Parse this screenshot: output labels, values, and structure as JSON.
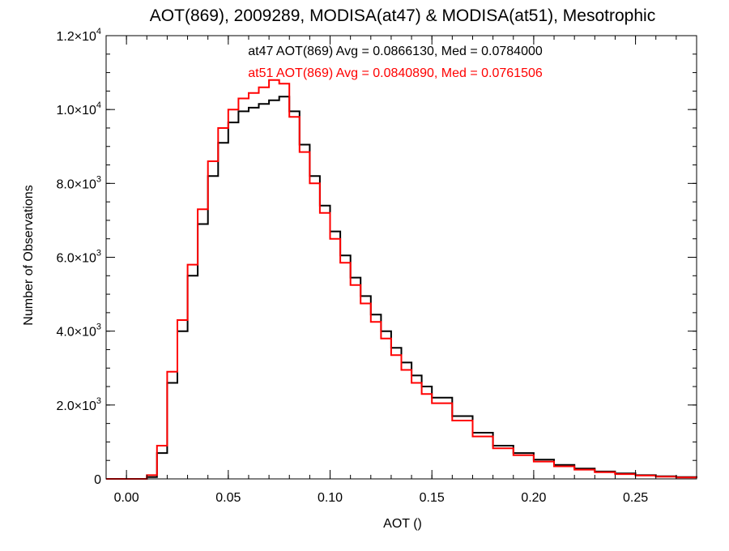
{
  "chart_data": {
    "type": "line",
    "style": "step-histogram",
    "title": "AOT(869), 2009289, MODISA(at47) & MODISA(at51), Mesotrophic",
    "xlabel": "AOT ()",
    "ylabel": "Number of Observations",
    "xlim": [
      -0.01,
      0.28
    ],
    "ylim": [
      0,
      12000
    ],
    "x_ticks": [
      {
        "value": 0.0,
        "label": "0.00"
      },
      {
        "value": 0.05,
        "label": "0.05"
      },
      {
        "value": 0.1,
        "label": "0.10"
      },
      {
        "value": 0.15,
        "label": "0.15"
      },
      {
        "value": 0.2,
        "label": "0.20"
      },
      {
        "value": 0.25,
        "label": "0.25"
      }
    ],
    "y_ticks": [
      {
        "value": 0,
        "mant": "0",
        "exp": ""
      },
      {
        "value": 2000,
        "mant": "2.0×10",
        "exp": "3"
      },
      {
        "value": 4000,
        "mant": "4.0×10",
        "exp": "3"
      },
      {
        "value": 6000,
        "mant": "6.0×10",
        "exp": "3"
      },
      {
        "value": 8000,
        "mant": "8.0×10",
        "exp": "3"
      },
      {
        "value": 10000,
        "mant": "1.0×10",
        "exp": "4"
      },
      {
        "value": 12000,
        "mant": "1.2×10",
        "exp": "4"
      }
    ],
    "grid": false,
    "legend_position": "top-center",
    "x": [
      0.0,
      0.005,
      0.01,
      0.015,
      0.02,
      0.025,
      0.03,
      0.035,
      0.04,
      0.045,
      0.05,
      0.055,
      0.06,
      0.065,
      0.07,
      0.075,
      0.08,
      0.085,
      0.09,
      0.095,
      0.1,
      0.105,
      0.11,
      0.115,
      0.12,
      0.125,
      0.13,
      0.135,
      0.14,
      0.145,
      0.15,
      0.16,
      0.17,
      0.18,
      0.19,
      0.2,
      0.21,
      0.22,
      0.23,
      0.24,
      0.25,
      0.26,
      0.27,
      0.28
    ],
    "series": [
      {
        "name": "at47",
        "annotation": "at47 AOT(869) Avg = 0.0866130, Med = 0.0784000",
        "color": "#000000",
        "values": [
          0,
          0,
          50,
          700,
          2600,
          4000,
          5500,
          6900,
          8200,
          9100,
          9650,
          9950,
          10050,
          10150,
          10250,
          10350,
          9950,
          9050,
          8200,
          7400,
          6700,
          6050,
          5450,
          4950,
          4450,
          4000,
          3550,
          3150,
          2800,
          2500,
          2200,
          1700,
          1250,
          900,
          700,
          520,
          380,
          280,
          200,
          150,
          100,
          70,
          50,
          30
        ]
      },
      {
        "name": "at51",
        "annotation": "at51 AOT(869) Avg = 0.0840890, Med = 0.0761506",
        "color": "#ff0000",
        "values": [
          0,
          0,
          100,
          900,
          2900,
          4300,
          5800,
          7300,
          8600,
          9500,
          10000,
          10300,
          10450,
          10600,
          10800,
          10700,
          9800,
          8850,
          8000,
          7200,
          6500,
          5850,
          5250,
          4750,
          4250,
          3800,
          3350,
          2950,
          2600,
          2300,
          2050,
          1580,
          1150,
          830,
          640,
          470,
          340,
          250,
          180,
          130,
          90,
          60,
          40,
          25
        ]
      }
    ]
  }
}
